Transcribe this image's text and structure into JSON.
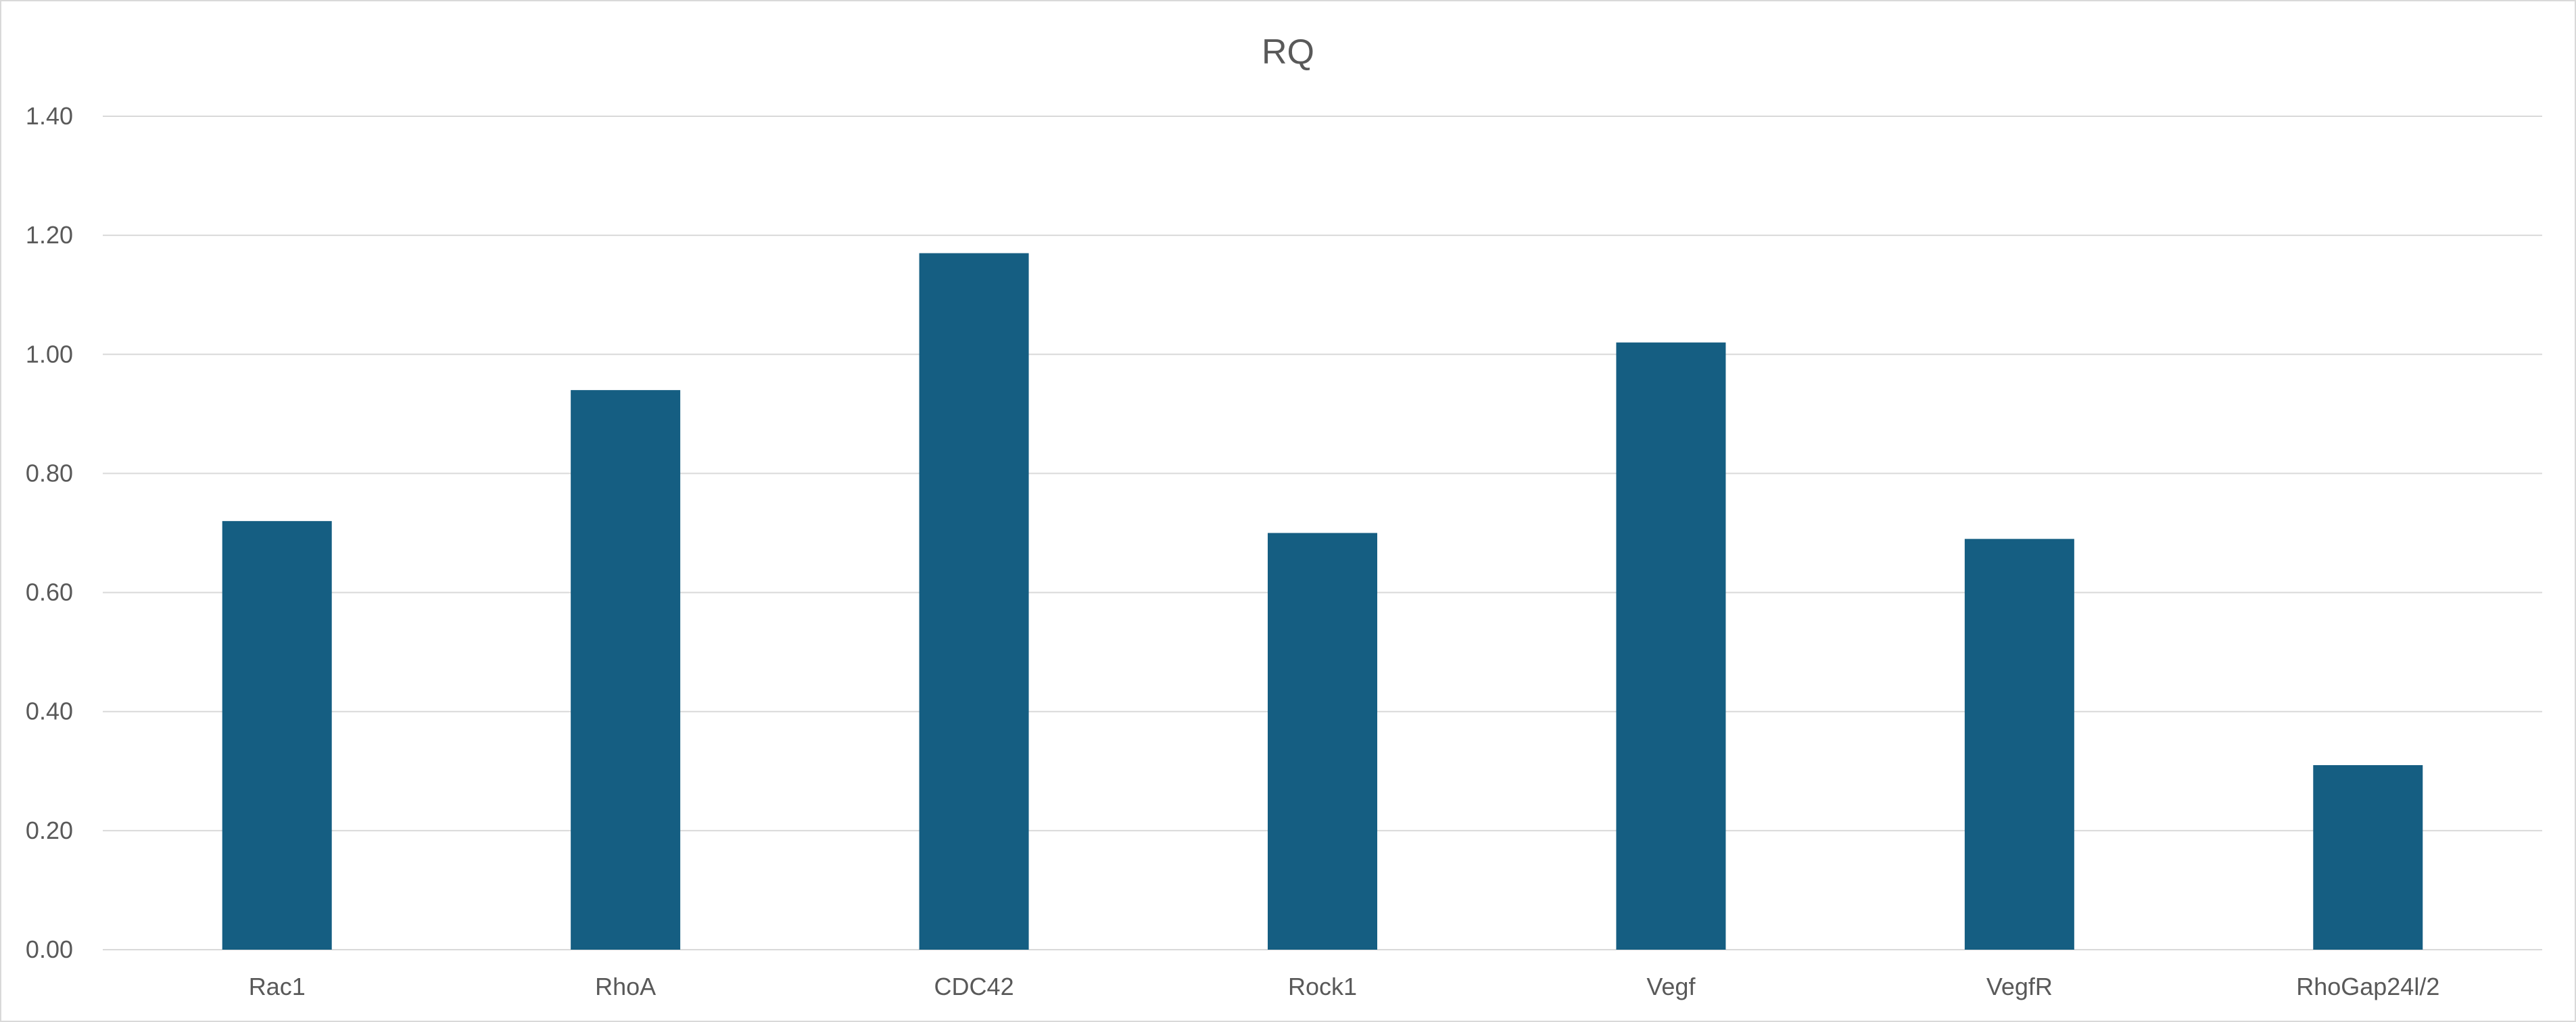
{
  "chart_data": {
    "type": "bar",
    "title": "RQ",
    "xlabel": "",
    "ylabel": "",
    "categories": [
      "Rac1",
      "RhoA",
      "CDC42",
      "Rock1",
      "Vegf",
      "VegfR",
      "RhoGap24l/2"
    ],
    "values": [
      0.72,
      0.94,
      1.17,
      0.7,
      1.02,
      0.69,
      0.31
    ],
    "ylim": [
      0,
      1.4
    ],
    "yticks": [
      "0.00",
      "0.20",
      "0.40",
      "0.60",
      "0.80",
      "1.00",
      "1.20",
      "1.40"
    ],
    "grid": true,
    "legend": "none",
    "bar_color": "#155E82",
    "gridline_color": "#d9d9d9"
  }
}
